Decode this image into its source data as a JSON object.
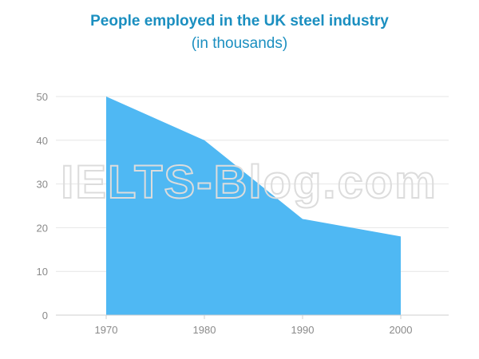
{
  "chart_data": {
    "type": "area",
    "title": "People employed in the UK steel industry",
    "subtitle": "(in thousands)",
    "categories": [
      "1970",
      "1980",
      "1990",
      "2000"
    ],
    "values": [
      50,
      40,
      22,
      18
    ],
    "xlabel": "",
    "ylabel": "",
    "ylim": [
      0,
      50
    ],
    "yticks": [
      0,
      10,
      20,
      30,
      40,
      50
    ],
    "grid": true,
    "legend": "none",
    "colors": {
      "fill": "#4fb8f3",
      "title": "#1b8fc0",
      "grid": "#e6e6e6",
      "tick_label": "#8a8a8a"
    },
    "watermark": "IELTS-Blog.com"
  }
}
